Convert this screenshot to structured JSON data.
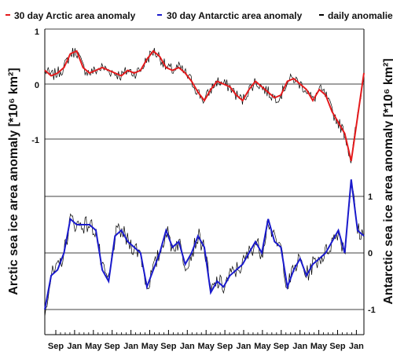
{
  "chart_data": {
    "type": "line",
    "legend": [
      {
        "label": "30 day Arctic area anomaly",
        "color": "#e41a1c"
      },
      {
        "label": "30 day Antarctic area anomaly",
        "color": "#1a1acc"
      },
      {
        "label": "daily anomalies",
        "color": "#000000"
      }
    ],
    "y_left_label": "Arctic sea ice area anomaly [*10⁶ km²]",
    "y_right_label": "Antarctic sea ice area anomaly [*10⁶ km²]",
    "y_left_ticks": [
      "1",
      "0",
      "-1"
    ],
    "y_right_ticks": [
      "1",
      "0",
      "-1"
    ],
    "y_left_range": [
      -1.0,
      1.0
    ],
    "y_right_range": [
      -1.0,
      1.0
    ],
    "x_tick_labels": [
      "Sep",
      "Jan",
      "May",
      "Sep",
      "Jan",
      "May",
      "Sep",
      "Jan",
      "May",
      "Sep",
      "Jan",
      "May",
      "Sep",
      "Jan",
      "May",
      "Sep",
      "Jan"
    ],
    "grid": "horizontal",
    "legend_position": "top",
    "series": [
      {
        "name": "30 day Arctic area anomaly",
        "color": "#e41a1c",
        "x": [
          0,
          2,
          4,
          6,
          8,
          10,
          12,
          14,
          16,
          18,
          20,
          22,
          24,
          26,
          28,
          30,
          32,
          34,
          36,
          38,
          40,
          42,
          44,
          46,
          48,
          50,
          52,
          54,
          56,
          58,
          60,
          62,
          64,
          66,
          68,
          70,
          72,
          74,
          76,
          78,
          80,
          82,
          84,
          86,
          88,
          90,
          92,
          94,
          96,
          98,
          100
        ],
        "values": [
          0.25,
          0.15,
          0.2,
          0.3,
          0.55,
          0.6,
          0.3,
          0.2,
          0.25,
          0.3,
          0.25,
          0.2,
          0.15,
          0.25,
          0.2,
          0.25,
          0.45,
          0.6,
          0.5,
          0.3,
          0.25,
          0.3,
          0.2,
          0.05,
          -0.15,
          -0.3,
          -0.1,
          0.05,
          0.0,
          -0.05,
          -0.2,
          -0.3,
          -0.1,
          0.05,
          -0.05,
          -0.15,
          -0.25,
          -0.2,
          0.05,
          0.1,
          0.0,
          -0.1,
          -0.3,
          -0.1,
          -0.2,
          -0.5,
          -0.7,
          -0.9,
          -1.4,
          -0.6,
          0.2
        ]
      },
      {
        "name": "30 day Antarctic area anomaly",
        "color": "#1a1acc",
        "x": [
          0,
          2,
          4,
          6,
          8,
          10,
          12,
          14,
          16,
          18,
          20,
          22,
          24,
          26,
          28,
          30,
          32,
          34,
          36,
          38,
          40,
          42,
          44,
          46,
          48,
          50,
          52,
          54,
          56,
          58,
          60,
          62,
          64,
          66,
          68,
          70,
          72,
          74,
          76,
          78,
          80,
          82,
          84,
          86,
          88,
          90,
          92,
          94,
          96,
          98,
          100
        ],
        "values": [
          -1.0,
          -0.4,
          -0.3,
          0.0,
          0.6,
          0.5,
          0.5,
          0.5,
          0.4,
          -0.3,
          -0.5,
          0.3,
          0.4,
          0.2,
          0.1,
          0.0,
          -0.6,
          -0.3,
          0.0,
          0.4,
          0.1,
          0.2,
          -0.2,
          0.0,
          0.3,
          0.1,
          -0.7,
          -0.5,
          -0.6,
          -0.4,
          -0.3,
          -0.2,
          0.0,
          0.2,
          0.0,
          0.6,
          0.2,
          0.1,
          -0.6,
          -0.3,
          -0.1,
          -0.4,
          -0.2,
          -0.1,
          0.0,
          0.2,
          0.4,
          0.0,
          1.3,
          0.4,
          0.3
        ]
      }
    ]
  }
}
